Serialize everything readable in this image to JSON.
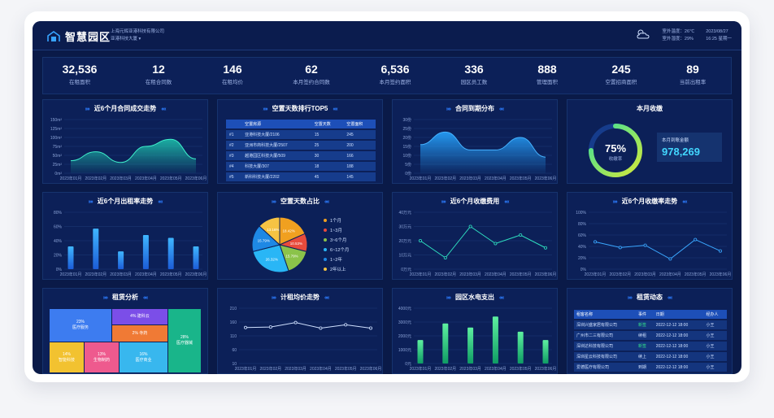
{
  "header": {
    "logo_text": "智慧园区",
    "company_name": "上海元辉亚港科技有限公司",
    "building": "亚港科技大厦 ▾",
    "weather_temp": "室外温度：26℃",
    "weather_humidity": "室外湿度：29%",
    "date": "2023/08/27",
    "time": "16:25 星期一",
    "weather_icon": "cloud-sun-icon"
  },
  "kpis": [
    {
      "value": "32,536",
      "label": "在租面积"
    },
    {
      "value": "12",
      "label": "在租合同数"
    },
    {
      "value": "146",
      "label": "在租均价"
    },
    {
      "value": "62",
      "label": "本月签约合同数"
    },
    {
      "value": "6,536",
      "label": "本月签约面积"
    },
    {
      "value": "336",
      "label": "园区员工数"
    },
    {
      "value": "888",
      "label": "管理面积"
    },
    {
      "value": "245",
      "label": "空置招商面积"
    },
    {
      "value": "89",
      "label": "当前出租率"
    }
  ],
  "panels": {
    "deals": {
      "title": "近6个月合同成交走势",
      "y_ticks": [
        "150m²",
        "125m²",
        "100m²",
        "75m²",
        "50m²",
        "25m²",
        "0m²"
      ],
      "x_ticks": [
        "2023年01月",
        "2023年02月",
        "2023年03月",
        "2023年04月",
        "2023年05月",
        "2023年06月"
      ]
    },
    "vacancy_rank": {
      "title": "空置天数排行TOP5",
      "headers": [
        "空置房源",
        "空置天数",
        "空置面积"
      ],
      "rows": [
        {
          "no": "#1",
          "name": "亚港科技大厦/2106",
          "days": "15",
          "area": "245"
        },
        {
          "no": "#2",
          "name": "亚洲市商科技大厦/2507",
          "days": "25",
          "area": "200"
        },
        {
          "no": "#3",
          "name": "越港园区科技大厦/509",
          "days": "30",
          "area": "166"
        },
        {
          "no": "#4",
          "name": "科技大厦/307",
          "days": "18",
          "area": "188"
        },
        {
          "no": "#5",
          "name": "新科科技大厦/2202",
          "days": "45",
          "area": "145"
        }
      ]
    },
    "expiry": {
      "title": "合同到期分布",
      "y_ticks": [
        "30份",
        "25份",
        "20份",
        "15份",
        "10份",
        "5份",
        "0份"
      ],
      "x_ticks": [
        "2023年01月",
        "2023年02月",
        "2023年03月",
        "2023年04月",
        "2023年05月",
        "2023年06月"
      ]
    },
    "income": {
      "title": "本月收缴",
      "rate_value": "75%",
      "rate_label": "收缴率",
      "rate_fraction": 0.75,
      "amount_label": "本月到账金额",
      "amount_value": "978,269"
    },
    "occupancy": {
      "title": "近6个月出租率走势",
      "y_ticks": [
        "80%",
        "60%",
        "40%",
        "20%",
        "0%"
      ],
      "x_ticks": [
        "2023年01月",
        "2023年02月",
        "2023年03月",
        "2023年04月",
        "2023年05月",
        "2023年06月"
      ]
    },
    "vacancy_share": {
      "title": "空置天数占比",
      "legend": [
        "1个月",
        "1~3月",
        "3~6个月",
        "6~12个月",
        "1~2年",
        "2年以上"
      ]
    },
    "fee": {
      "title": "近6个月收缴费用",
      "y_ticks": [
        "40万元",
        "30万元",
        "20万元",
        "10万元",
        "0万元"
      ],
      "x_ticks": [
        "2023年01月",
        "2023年02月",
        "2023年03月",
        "2023年04月",
        "2023年05月",
        "2023年06月"
      ]
    },
    "collect_rate": {
      "title": "近6个月收缴率走势",
      "y_ticks": [
        "100%",
        "80%",
        "60%",
        "40%",
        "20%",
        "0%"
      ],
      "x_ticks": [
        "2023年01月",
        "2023年02月",
        "2023年03月",
        "2023年04月",
        "2023年05月",
        "2023年06月"
      ]
    },
    "lease_analysis": {
      "title": "租赁分析",
      "cells": [
        {
          "pct": "23%",
          "name": "医疗服务"
        },
        {
          "pct": "4%",
          "name": "建科云"
        },
        {
          "pct": "2%",
          "name": "寺药"
        },
        {
          "pct": "28%",
          "name": "医疗器械"
        },
        {
          "pct": "14%",
          "name": "智能科技"
        },
        {
          "pct": "13%",
          "name": "生物制药"
        },
        {
          "pct": "16%",
          "name": "医疗商业"
        }
      ]
    },
    "avg_price": {
      "title": "计租均价走势",
      "y_ticks": [
        "210",
        "160",
        "110",
        "60",
        "10"
      ],
      "x_ticks": [
        "2023年01月",
        "2023年02月",
        "2023年03月",
        "2023年04月",
        "2023年05月",
        "2023年06月"
      ]
    },
    "utility": {
      "title": "园区水电支出",
      "y_ticks": [
        "4000元",
        "3000元",
        "2000元",
        "1000元",
        "0元"
      ],
      "x_ticks": [
        "2023年01月",
        "2023年02月",
        "2023年03月",
        "2023年04月",
        "2023年05月",
        "2023年06月"
      ]
    },
    "lease_feed": {
      "title": "租赁动态",
      "headers": [
        "租客名称",
        "事件",
        "日期",
        "经办人"
      ],
      "rows": [
        {
          "name": "深圳兴盛家居有限公司",
          "event": "新签",
          "date": "2022-12-12 18:00",
          "agent": "小王"
        },
        {
          "name": "广州市二三有限公司",
          "event": "续租",
          "date": "2022-12-12 18:00",
          "agent": "小王"
        },
        {
          "name": "深圳达科技有限公司",
          "event": "新签",
          "date": "2022-12-12 18:00",
          "agent": "小王"
        },
        {
          "name": "深圳星云科技有限公司",
          "event": "续上",
          "date": "2022-12-12 18:00",
          "agent": "小王"
        },
        {
          "name": "爱德医疗有限公司",
          "event": "到期",
          "date": "2022-12-12 18:00",
          "agent": "小王"
        }
      ]
    }
  },
  "chart_data": [
    {
      "type": "area",
      "x": [
        "2023年01月",
        "2023年02月",
        "2023年03月",
        "2023年04月",
        "2023年05月",
        "2023年06月"
      ],
      "values": [
        35,
        60,
        30,
        75,
        95,
        40
      ],
      "ylim": [
        0,
        150
      ]
    },
    {
      "type": "area",
      "x": [
        "2023年01月",
        "2023年02月",
        "2023年03月",
        "2023年04月",
        "2023年05月",
        "2023年06月"
      ],
      "values": [
        16,
        23,
        13,
        13,
        20,
        9
      ],
      "ylim": [
        0,
        30
      ]
    },
    {
      "type": "bar",
      "x": [
        "2023年01月",
        "2023年02月",
        "2023年03月",
        "2023年04月",
        "2023年05月",
        "2023年06月"
      ],
      "values": [
        32,
        57,
        25,
        48,
        44,
        32
      ],
      "ylim": [
        0,
        80
      ]
    },
    {
      "type": "pie",
      "labels": [
        "1个月",
        "1~3月",
        "3~6个月",
        "6~12个月",
        "1~2年",
        "2年以上"
      ],
      "values": [
        18.42,
        10.53,
        15.79,
        26.32,
        15.79,
        13.16
      ],
      "display": [
        "18.42%",
        "10.53%",
        "15.79%",
        "26.32%",
        "15.79%",
        "13.16%"
      ]
    },
    {
      "type": "line",
      "x": [
        "2023年01月",
        "2023年02月",
        "2023年03月",
        "2023年04月",
        "2023年05月",
        "2023年06月"
      ],
      "values": [
        20,
        8,
        30,
        18,
        24,
        15
      ],
      "ylim": [
        0,
        40
      ]
    },
    {
      "type": "line",
      "x": [
        "2023年01月",
        "2023年02月",
        "2023年03月",
        "2023年04月",
        "2023年05月",
        "2023年06月"
      ],
      "values": [
        48,
        38,
        42,
        18,
        52,
        32
      ],
      "ylim": [
        0,
        100
      ]
    },
    {
      "type": "line",
      "x": [
        "2023年01月",
        "2023年02月",
        "2023年03月",
        "2023年04月",
        "2023年05月",
        "2023年06月"
      ],
      "values": [
        140,
        142,
        158,
        138,
        150,
        138
      ],
      "ylim": [
        10,
        210
      ]
    },
    {
      "type": "bar",
      "x": [
        "2023年01月",
        "2023年02月",
        "2023年03月",
        "2023年04月",
        "2023年05月",
        "2023年06月"
      ],
      "values": [
        1700,
        2900,
        2600,
        3400,
        2300,
        1700
      ],
      "ylim": [
        0,
        4000
      ]
    }
  ]
}
